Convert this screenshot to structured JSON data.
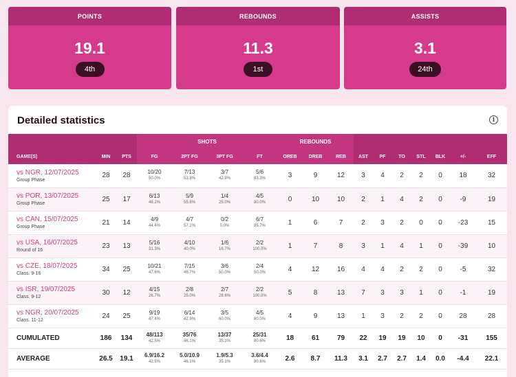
{
  "cards": [
    {
      "title": "POINTS",
      "value": "19.1",
      "rank": "4th"
    },
    {
      "title": "REBOUNDS",
      "value": "11.3",
      "rank": "1st"
    },
    {
      "title": "ASSISTS",
      "value": "3.1",
      "rank": "24th"
    }
  ],
  "panel": {
    "title": "Detailed statistics",
    "info_icon": "info-icon"
  },
  "groups": {
    "shots": "SHOTS",
    "rebounds": "REBOUNDS"
  },
  "columns": [
    "GAME(S)",
    "MIN",
    "PTS",
    "FG",
    "2PT FG",
    "3PT FG",
    "FT",
    "OREB",
    "DREB",
    "REB",
    "AST",
    "PF",
    "TO",
    "STL",
    "BLK",
    "+/-",
    "EFF"
  ],
  "games": [
    {
      "game": "vs NGR, 12/07/2025",
      "phase": "Group Phase",
      "min": "28",
      "pts": "28",
      "fg": "10/20",
      "fg_pct": "50.0%",
      "fg2": "7/13",
      "fg2_pct": "53.8%",
      "fg3": "3/7",
      "fg3_pct": "42.9%",
      "ft": "5/6",
      "ft_pct": "83.3%",
      "oreb": "3",
      "dreb": "9",
      "reb": "12",
      "ast": "3",
      "pf": "4",
      "to": "2",
      "stl": "2",
      "blk": "0",
      "pm": "18",
      "eff": "32"
    },
    {
      "game": "vs POR, 13/07/2025",
      "phase": "Group Phase",
      "min": "25",
      "pts": "17",
      "fg": "6/13",
      "fg_pct": "46.2%",
      "fg2": "5/9",
      "fg2_pct": "55.6%",
      "fg3": "1/4",
      "fg3_pct": "25.0%",
      "ft": "4/5",
      "ft_pct": "80.0%",
      "oreb": "0",
      "dreb": "10",
      "reb": "10",
      "ast": "2",
      "pf": "1",
      "to": "4",
      "stl": "2",
      "blk": "0",
      "pm": "-9",
      "eff": "19"
    },
    {
      "game": "vs CAN, 15/07/2025",
      "phase": "Group Phase",
      "min": "21",
      "pts": "14",
      "fg": "4/9",
      "fg_pct": "44.4%",
      "fg2": "4/7",
      "fg2_pct": "57.1%",
      "fg3": "0/2",
      "fg3_pct": "0.0%",
      "ft": "6/7",
      "ft_pct": "85.7%",
      "oreb": "1",
      "dreb": "6",
      "reb": "7",
      "ast": "2",
      "pf": "3",
      "to": "2",
      "stl": "0",
      "blk": "0",
      "pm": "-23",
      "eff": "15"
    },
    {
      "game": "vs USA, 16/07/2025",
      "phase": "Round of 16",
      "min": "23",
      "pts": "13",
      "fg": "5/16",
      "fg_pct": "31.3%",
      "fg2": "4/10",
      "fg2_pct": "40.0%",
      "fg3": "1/6",
      "fg3_pct": "16.7%",
      "ft": "2/2",
      "ft_pct": "100.0%",
      "oreb": "1",
      "dreb": "7",
      "reb": "8",
      "ast": "3",
      "pf": "1",
      "to": "4",
      "stl": "1",
      "blk": "0",
      "pm": "-39",
      "eff": "10"
    },
    {
      "game": "vs CZE, 18/07/2025",
      "phase": "Class. 9-16",
      "min": "34",
      "pts": "25",
      "fg": "10/21",
      "fg_pct": "47.6%",
      "fg2": "7/15",
      "fg2_pct": "46.7%",
      "fg3": "3/6",
      "fg3_pct": "50.0%",
      "ft": "2/4",
      "ft_pct": "50.0%",
      "oreb": "4",
      "dreb": "12",
      "reb": "16",
      "ast": "4",
      "pf": "4",
      "to": "2",
      "stl": "2",
      "blk": "0",
      "pm": "-5",
      "eff": "32"
    },
    {
      "game": "vs ISR, 19/07/2025",
      "phase": "Class. 9-12",
      "min": "30",
      "pts": "12",
      "fg": "4/15",
      "fg_pct": "26.7%",
      "fg2": "2/8",
      "fg2_pct": "25.0%",
      "fg3": "2/7",
      "fg3_pct": "28.6%",
      "ft": "2/2",
      "ft_pct": "100.0%",
      "oreb": "5",
      "dreb": "8",
      "reb": "13",
      "ast": "7",
      "pf": "3",
      "to": "3",
      "stl": "1",
      "blk": "0",
      "pm": "-1",
      "eff": "19"
    },
    {
      "game": "vs NGR, 20/07/2025",
      "phase": "Class. 11-12",
      "min": "24",
      "pts": "25",
      "fg": "9/19",
      "fg_pct": "47.4%",
      "fg2": "6/14",
      "fg2_pct": "42.9%",
      "fg3": "3/5",
      "fg3_pct": "60.0%",
      "ft": "4/5",
      "ft_pct": "80.0%",
      "oreb": "4",
      "dreb": "9",
      "reb": "13",
      "ast": "1",
      "pf": "3",
      "to": "2",
      "stl": "2",
      "blk": "0",
      "pm": "28",
      "eff": "28"
    }
  ],
  "cumulated": {
    "label": "CUMULATED",
    "min": "186",
    "pts": "134",
    "fg": "48/113",
    "fg_pct": "42.5%",
    "fg2": "35/76",
    "fg2_pct": "46.1%",
    "fg3": "13/37",
    "fg3_pct": "35.1%",
    "ft": "25/31",
    "ft_pct": "80.6%",
    "oreb": "18",
    "dreb": "61",
    "reb": "79",
    "ast": "22",
    "pf": "19",
    "to": "19",
    "stl": "10",
    "blk": "0",
    "pm": "-31",
    "eff": "155"
  },
  "average": {
    "label": "AVERAGE",
    "min": "26.5",
    "pts": "19.1",
    "fg": "6.9/16.2",
    "fg_pct": "42.5%",
    "fg2": "5.0/10.9",
    "fg2_pct": "46.1%",
    "fg3": "1.9/5.3",
    "fg3_pct": "35.1%",
    "ft": "3.6/4.4",
    "ft_pct": "80.6%",
    "oreb": "2.6",
    "dreb": "8.7",
    "reb": "11.3",
    "ast": "3.1",
    "pf": "2.7",
    "to": "2.7",
    "stl": "1.4",
    "blk": "0.0",
    "pm": "-4.4",
    "eff": "22.1"
  }
}
